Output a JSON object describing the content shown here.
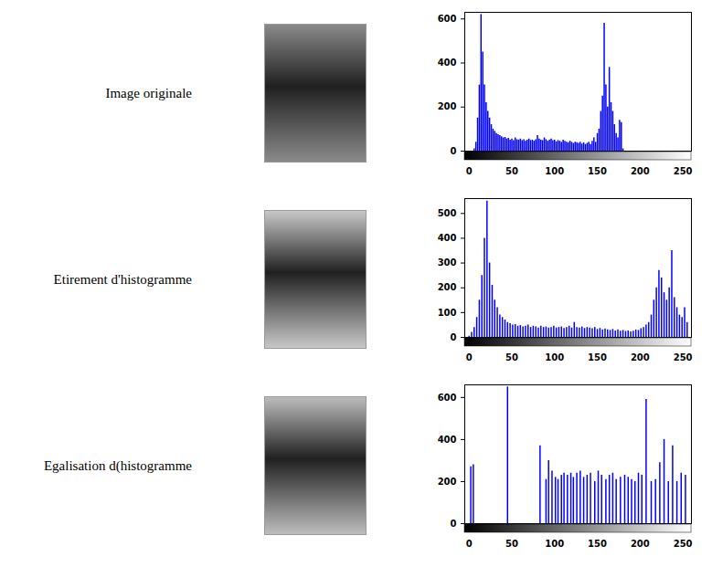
{
  "chart_data": [
    {
      "type": "bar",
      "title": "Image originale",
      "color": "#0000ff",
      "x": [
        6,
        8,
        10,
        12,
        14,
        16,
        18,
        20,
        22,
        24,
        26,
        28,
        30,
        32,
        34,
        36,
        38,
        40,
        42,
        44,
        46,
        48,
        50,
        52,
        54,
        56,
        58,
        60,
        62,
        64,
        66,
        68,
        70,
        72,
        74,
        76,
        78,
        80,
        82,
        84,
        86,
        88,
        90,
        92,
        94,
        96,
        98,
        100,
        102,
        104,
        106,
        108,
        110,
        112,
        114,
        116,
        118,
        120,
        122,
        124,
        126,
        128,
        130,
        132,
        134,
        136,
        138,
        140,
        142,
        144,
        146,
        148,
        150,
        152,
        154,
        156,
        158,
        160,
        162,
        164,
        166,
        168,
        170,
        172,
        174,
        176,
        178,
        180
      ],
      "values": [
        10,
        40,
        150,
        300,
        620,
        450,
        300,
        220,
        180,
        150,
        120,
        100,
        90,
        80,
        75,
        70,
        65,
        60,
        62,
        55,
        58,
        50,
        55,
        48,
        60,
        52,
        50,
        55,
        48,
        52,
        45,
        50,
        55,
        48,
        50,
        45,
        52,
        70,
        55,
        50,
        48,
        60,
        52,
        45,
        50,
        55,
        48,
        50,
        42,
        48,
        45,
        40,
        50,
        45,
        40,
        38,
        45,
        40,
        35,
        40,
        38,
        35,
        40,
        32,
        38,
        30,
        35,
        40,
        30,
        45,
        60,
        40,
        80,
        100,
        180,
        250,
        580,
        300,
        200,
        380,
        220,
        180,
        120,
        80,
        60,
        140,
        130,
        10
      ],
      "xlim": [
        -5,
        260
      ],
      "xticks": [
        0,
        50,
        100,
        150,
        200,
        250
      ],
      "ylim": [
        0,
        630
      ],
      "yticks": [
        0,
        200,
        400,
        600
      ]
    },
    {
      "type": "bar",
      "title": "Etirement d'histogramme",
      "color": "#0000ff",
      "x": [
        0,
        3,
        6,
        9,
        12,
        15,
        18,
        21,
        24,
        27,
        30,
        33,
        36,
        39,
        42,
        45,
        48,
        51,
        54,
        57,
        60,
        63,
        66,
        69,
        72,
        75,
        78,
        81,
        84,
        87,
        90,
        93,
        96,
        99,
        102,
        105,
        108,
        111,
        114,
        117,
        120,
        123,
        126,
        129,
        132,
        135,
        138,
        141,
        144,
        147,
        150,
        153,
        156,
        159,
        162,
        165,
        168,
        171,
        174,
        177,
        180,
        183,
        186,
        189,
        192,
        195,
        198,
        201,
        204,
        207,
        210,
        213,
        216,
        219,
        222,
        225,
        228,
        231,
        234,
        237,
        240,
        243,
        246,
        249,
        252,
        255
      ],
      "values": [
        5,
        20,
        40,
        80,
        150,
        250,
        400,
        550,
        300,
        210,
        150,
        120,
        90,
        80,
        70,
        60,
        55,
        50,
        52,
        45,
        48,
        42,
        45,
        50,
        40,
        45,
        42,
        38,
        45,
        40,
        42,
        38,
        40,
        45,
        38,
        40,
        42,
        36,
        40,
        45,
        38,
        60,
        40,
        38,
        42,
        36,
        40,
        38,
        35,
        40,
        32,
        36,
        30,
        34,
        30,
        28,
        32,
        26,
        30,
        25,
        28,
        24,
        26,
        22,
        25,
        30,
        28,
        35,
        40,
        50,
        60,
        90,
        150,
        200,
        270,
        240,
        180,
        150,
        200,
        350,
        160,
        120,
        90,
        80,
        120,
        60
      ],
      "xlim": [
        -5,
        260
      ],
      "xticks": [
        0,
        50,
        100,
        150,
        200,
        250
      ],
      "ylim": [
        0,
        560
      ],
      "yticks": [
        0,
        100,
        200,
        300,
        400,
        500
      ]
    },
    {
      "type": "bar",
      "title": "Egalisation d(histogramme",
      "color": "#0000ff",
      "x": [
        2,
        5,
        45,
        83,
        90,
        93,
        97,
        101,
        104,
        108,
        111,
        115,
        119,
        122,
        126,
        130,
        134,
        138,
        142,
        147,
        151,
        155,
        160,
        164,
        168,
        172,
        177,
        182,
        186,
        190,
        194,
        198,
        202,
        207,
        213,
        218,
        223,
        228,
        233,
        238,
        243,
        248,
        253
      ],
      "values": [
        270,
        280,
        650,
        370,
        210,
        300,
        250,
        220,
        210,
        230,
        240,
        230,
        240,
        220,
        240,
        250,
        220,
        230,
        240,
        200,
        250,
        230,
        210,
        230,
        240,
        210,
        220,
        230,
        220,
        210,
        200,
        240,
        230,
        590,
        200,
        210,
        290,
        400,
        200,
        370,
        200,
        240,
        230
      ],
      "xlim": [
        -5,
        260
      ],
      "xticks": [
        0,
        50,
        100,
        150,
        200,
        250
      ],
      "ylim": [
        0,
        660
      ],
      "yticks": [
        0,
        200,
        400,
        600
      ]
    }
  ]
}
